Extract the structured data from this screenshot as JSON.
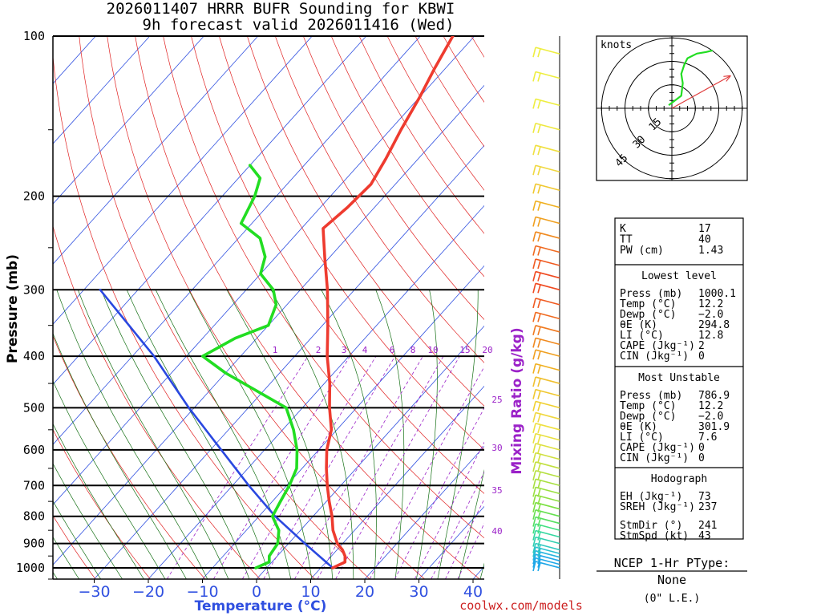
{
  "title": {
    "line1": "2026011407 HRRR BUFR Sounding for KBWI",
    "line2": "9h forecast valid 2026011416 (Wed)"
  },
  "colors": {
    "temperature": "#ee3b2f",
    "dewpoint": "#22dd22",
    "parcel": "#2a48e0",
    "isotherm": "#3050e0",
    "dry_adiabat": "#e02020",
    "moist_adiabat": "#157015",
    "mixing_ratio": "#9b22c8"
  },
  "chart_data": {
    "type": "skew-t",
    "xlabel": "Temperature (°C)",
    "ylabel": "Pressure (mb)",
    "secondary_label": "Mixing Ratio (g/kg)",
    "xlim": [
      -40,
      40
    ],
    "ylim": [
      1050,
      100
    ],
    "pressure_ticks": [
      100,
      200,
      300,
      400,
      500,
      600,
      700,
      800,
      900,
      1000
    ],
    "temperature_ticks": [
      -30,
      -20,
      -10,
      0,
      10,
      20,
      30,
      40
    ],
    "mixing_ratio_labels": [
      "1",
      "2",
      "3",
      "4",
      "6",
      "8",
      "10",
      "15",
      "20",
      "25",
      "30",
      "35",
      "40"
    ],
    "temperature_profile": [
      [
        1000,
        12.2
      ],
      [
        975,
        13.5
      ],
      [
        950,
        12.5
      ],
      [
        925,
        11.0
      ],
      [
        900,
        9.0
      ],
      [
        850,
        6.0
      ],
      [
        800,
        3.5
      ],
      [
        750,
        0.5
      ],
      [
        700,
        -2.5
      ],
      [
        650,
        -5.5
      ],
      [
        600,
        -8.5
      ],
      [
        550,
        -11.0
      ],
      [
        500,
        -15.0
      ],
      [
        450,
        -19.0
      ],
      [
        400,
        -24.0
      ],
      [
        350,
        -29.0
      ],
      [
        300,
        -35.0
      ],
      [
        260,
        -41.0
      ],
      [
        230,
        -46.0
      ],
      [
        210,
        -45.0
      ],
      [
        190,
        -44.5
      ],
      [
        170,
        -46.0
      ],
      [
        150,
        -48.0
      ],
      [
        130,
        -50.0
      ],
      [
        115,
        -52.0
      ],
      [
        100,
        -54.0
      ]
    ],
    "dewpoint_profile": [
      [
        1000,
        -2.0
      ],
      [
        975,
        -0.5
      ],
      [
        950,
        -1.5
      ],
      [
        900,
        -2.0
      ],
      [
        850,
        -4.0
      ],
      [
        800,
        -7.5
      ],
      [
        750,
        -8.5
      ],
      [
        700,
        -9.5
      ],
      [
        650,
        -11.0
      ],
      [
        600,
        -14.0
      ],
      [
        550,
        -18.0
      ],
      [
        500,
        -23.0
      ],
      [
        470,
        -30.0
      ],
      [
        430,
        -40.0
      ],
      [
        400,
        -47.0
      ],
      [
        370,
        -44.0
      ],
      [
        350,
        -40.0
      ],
      [
        320,
        -42.0
      ],
      [
        300,
        -45.0
      ],
      [
        280,
        -50.0
      ],
      [
        260,
        -52.0
      ],
      [
        240,
        -56.0
      ],
      [
        225,
        -62.0
      ],
      [
        200,
        -64.0
      ],
      [
        185,
        -66.0
      ],
      [
        175,
        -70.0
      ]
    ],
    "parcel_profile": [
      [
        1000,
        12.2
      ],
      [
        900,
        3.0
      ],
      [
        800,
        -7.0
      ],
      [
        700,
        -17.0
      ],
      [
        600,
        -28.0
      ],
      [
        500,
        -41.0
      ],
      [
        400,
        -56.0
      ],
      [
        300,
        -77.0
      ]
    ],
    "hodograph": {
      "unit_label": "knots",
      "ring_labels": [
        "15",
        "30",
        "45"
      ],
      "storm_motion": {
        "direction_deg": 241,
        "speed_kt": 43
      },
      "wind_trace": [
        [
          -2,
          2
        ],
        [
          2,
          5
        ],
        [
          6,
          8
        ],
        [
          7,
          16
        ],
        [
          6,
          22
        ],
        [
          8,
          28
        ],
        [
          10,
          32
        ],
        [
          16,
          35
        ],
        [
          22,
          36
        ],
        [
          26,
          37
        ]
      ]
    },
    "wind_barbs": [
      {
        "p": 1000,
        "color": "#1ea7e8"
      },
      {
        "p": 985,
        "color": "#1ea7e8"
      },
      {
        "p": 970,
        "color": "#1ea7e8"
      },
      {
        "p": 955,
        "color": "#28b5e0"
      },
      {
        "p": 940,
        "color": "#2ac0d0"
      },
      {
        "p": 925,
        "color": "#2ec8c0"
      },
      {
        "p": 900,
        "color": "#30d0b0"
      },
      {
        "p": 875,
        "color": "#33d8a0"
      },
      {
        "p": 850,
        "color": "#40e080"
      },
      {
        "p": 825,
        "color": "#55e060"
      },
      {
        "p": 800,
        "color": "#66e050"
      },
      {
        "p": 775,
        "color": "#7ae040"
      },
      {
        "p": 750,
        "color": "#8ee040"
      },
      {
        "p": 725,
        "color": "#9ae040"
      },
      {
        "p": 700,
        "color": "#a8e040"
      },
      {
        "p": 675,
        "color": "#b5e040"
      },
      {
        "p": 650,
        "color": "#c2e040"
      },
      {
        "p": 625,
        "color": "#d0e040"
      },
      {
        "p": 600,
        "color": "#dde040"
      },
      {
        "p": 575,
        "color": "#e8e040"
      },
      {
        "p": 550,
        "color": "#eee040"
      },
      {
        "p": 525,
        "color": "#f0d840"
      },
      {
        "p": 500,
        "color": "#f0d030"
      },
      {
        "p": 475,
        "color": "#f0c830"
      },
      {
        "p": 450,
        "color": "#f0c030"
      },
      {
        "p": 425,
        "color": "#f0b020"
      },
      {
        "p": 400,
        "color": "#f0a020"
      },
      {
        "p": 380,
        "color": "#f08a20"
      },
      {
        "p": 360,
        "color": "#f07a20"
      },
      {
        "p": 340,
        "color": "#f06a20"
      },
      {
        "p": 320,
        "color": "#f05a20"
      },
      {
        "p": 300,
        "color": "#f04a20"
      },
      {
        "p": 285,
        "color": "#f04a20"
      },
      {
        "p": 270,
        "color": "#f05a20"
      },
      {
        "p": 255,
        "color": "#f06a20"
      },
      {
        "p": 240,
        "color": "#f08a20"
      },
      {
        "p": 225,
        "color": "#f0a020"
      },
      {
        "p": 210,
        "color": "#f0b020"
      },
      {
        "p": 195,
        "color": "#f0c830"
      },
      {
        "p": 180,
        "color": "#f0d840"
      },
      {
        "p": 165,
        "color": "#f0e040"
      },
      {
        "p": 150,
        "color": "#eee840"
      },
      {
        "p": 135,
        "color": "#eeee40"
      },
      {
        "p": 120,
        "color": "#eeee40"
      },
      {
        "p": 108,
        "color": "#eeee40"
      }
    ]
  },
  "indices": {
    "basic": [
      {
        "label": "K",
        "value": "17"
      },
      {
        "label": "TT",
        "value": "40"
      },
      {
        "label": "PW (cm)",
        "value": "1.43"
      }
    ],
    "lowest_level": {
      "header": "Lowest level",
      "rows": [
        {
          "label": "Press (mb)",
          "value": "1000.1"
        },
        {
          "label": "Temp (°C)",
          "value": "12.2"
        },
        {
          "label": "Dewp (°C)",
          "value": "−2.0"
        },
        {
          "label": "θE (K)",
          "value": "294.8"
        },
        {
          "label": "LI (°C)",
          "value": "12.8"
        },
        {
          "label": "CAPE (Jkg⁻¹)",
          "value": "2"
        },
        {
          "label": "CIN (Jkg⁻¹)",
          "value": "0"
        }
      ]
    },
    "most_unstable": {
      "header": "Most Unstable",
      "rows": [
        {
          "label": "Press (mb)",
          "value": "786.9"
        },
        {
          "label": "Temp (°C)",
          "value": "12.2"
        },
        {
          "label": "Dewp (°C)",
          "value": "−2.0"
        },
        {
          "label": "θE (K)",
          "value": "301.9"
        },
        {
          "label": "LI (°C)",
          "value": "7.6"
        },
        {
          "label": "CAPE (Jkg⁻¹)",
          "value": "0"
        },
        {
          "label": "CIN (Jkg⁻¹)",
          "value": "0"
        }
      ]
    },
    "hodograph": {
      "header": "Hodograph",
      "rows": [
        {
          "label": "EH (Jkg⁻¹)",
          "value": "73"
        },
        {
          "label": "SREH (Jkg⁻¹)",
          "value": "237"
        },
        {
          "label": "StmDir (°)",
          "value": "241"
        },
        {
          "label": "StmSpd (kt)",
          "value": "43"
        }
      ]
    }
  },
  "ptype": {
    "header": "NCEP 1-Hr PType:",
    "value": "None",
    "accum": "(0\" L.E.)"
  },
  "credit": "coolwx.com/models"
}
